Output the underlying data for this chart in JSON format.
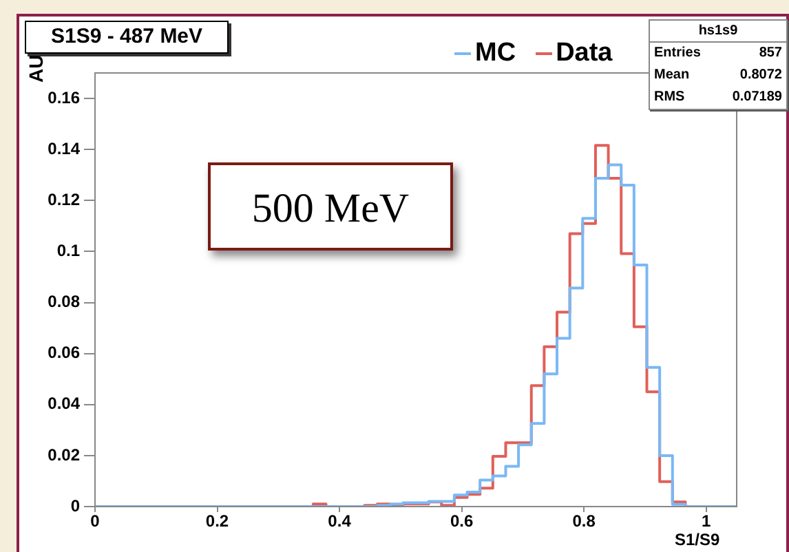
{
  "chart_data": {
    "type": "histogram",
    "title": "S1S9 - 487 MeV",
    "xlabel": "S1/S9",
    "ylabel": "AU",
    "bins": [
      0,
      0.021,
      0.042,
      0.063,
      0.084,
      0.105,
      0.126,
      0.147,
      0.168,
      0.189,
      0.21,
      0.231,
      0.252,
      0.273,
      0.294,
      0.315,
      0.336,
      0.357,
      0.378,
      0.399,
      0.42,
      0.441,
      0.462,
      0.483,
      0.504,
      0.525,
      0.546,
      0.567,
      0.588,
      0.609,
      0.63,
      0.651,
      0.672,
      0.693,
      0.714,
      0.735,
      0.756,
      0.777,
      0.798,
      0.819,
      0.84,
      0.861,
      0.882,
      0.903,
      0.924,
      0.945,
      0.966,
      0.987,
      1.008,
      1.029,
      1.05
    ],
    "series": [
      {
        "name": "MC",
        "color": "#7ab8f5",
        "values": [
          0,
          0,
          0,
          0,
          0,
          0,
          0,
          0,
          0,
          0,
          0,
          0,
          0,
          0,
          0,
          0,
          0,
          0,
          0,
          0,
          0,
          0,
          0.0005,
          0.001,
          0.0015,
          0.0015,
          0.002,
          0.002,
          0.0045,
          0.0057,
          0.0104,
          0.012,
          0.0158,
          0.0242,
          0.0326,
          0.052,
          0.066,
          0.0857,
          0.113,
          0.1287,
          0.134,
          0.126,
          0.0947,
          0.0546,
          0.02,
          0.0009,
          0,
          0,
          0,
          0
        ]
      },
      {
        "name": "Data",
        "color": "#e0605a",
        "values": [
          0,
          0,
          0,
          0,
          0,
          0,
          0,
          0,
          0,
          0,
          0,
          0,
          0,
          0,
          0,
          0,
          0,
          0.001,
          0,
          0,
          0,
          0.0005,
          0.001,
          0.0005,
          0.001,
          0.001,
          0.0018,
          0.0005,
          0.0036,
          0.0048,
          0.0072,
          0.0197,
          0.025,
          0.025,
          0.0474,
          0.0627,
          0.0762,
          0.107,
          0.111,
          0.1416,
          0.1287,
          0.0992,
          0.0705,
          0.045,
          0.0098,
          0.0018,
          0,
          0,
          0,
          0
        ]
      }
    ],
    "xlim": [
      0,
      1.05
    ],
    "ylim": [
      0,
      0.17
    ],
    "xticks": [
      0,
      0.2,
      0.4,
      0.6,
      0.8,
      1
    ],
    "yticks": [
      0,
      0.02,
      0.04,
      0.06,
      0.08,
      0.1,
      0.12,
      0.14,
      0.16
    ],
    "grid": false,
    "legend": "top right",
    "annotations": [
      "500 MeV",
      "hs1s9",
      "Entries",
      "857",
      "Mean",
      "0.8072",
      "RMS",
      "0.07189"
    ]
  }
}
